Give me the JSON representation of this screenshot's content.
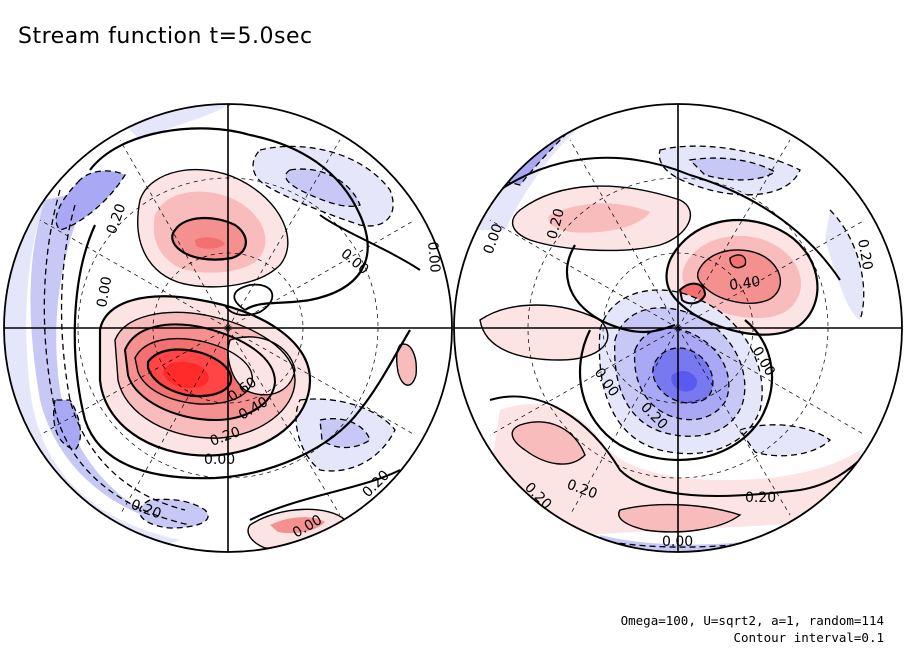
{
  "figure": {
    "title": "Stream function t=5.0sec",
    "params_line1": "Omega=100, U=sqrt2, a=1, random=114",
    "params_line2": "Contour interval=0.1"
  },
  "colors": {
    "positive_strong": "#ff2a2a",
    "positive_mid": "#f59090",
    "positive_weak": "#fce4e4",
    "negative_strong": "#5a5af0",
    "negative_mid": "#a8a8f4",
    "negative_weak": "#e6e6fb",
    "background": "#ffffff"
  },
  "left_hemisphere": {
    "labels": [
      "0.20",
      "0.00",
      "0.00",
      "0.00",
      "0.60",
      "0.40",
      "0.20",
      "0.00",
      "0.20",
      "0.20",
      "0.00"
    ]
  },
  "right_hemisphere": {
    "labels": [
      "0.00",
      "0.20",
      "0.40",
      "0.20",
      "0.00",
      "0.00",
      "0.20",
      "0.20",
      "0.20",
      "0.20",
      "0.00"
    ]
  }
}
